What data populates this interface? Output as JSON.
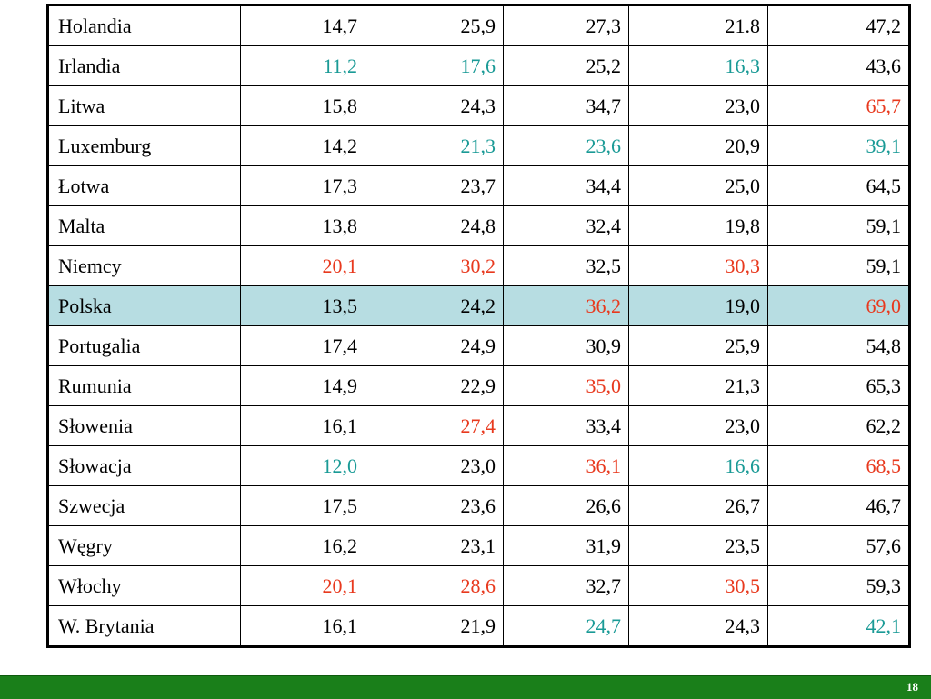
{
  "table": {
    "rows": [
      {
        "country": "Holandia",
        "values": [
          "14,7",
          "25,9",
          "27,3",
          "21.8",
          "47,2"
        ],
        "colors": [
          "",
          "",
          "",
          "",
          ""
        ]
      },
      {
        "country": "Irlandia",
        "values": [
          "11,2",
          "17,6",
          "25,2",
          "16,3",
          "43,6"
        ],
        "colors": [
          "teal",
          "teal",
          "",
          "teal",
          ""
        ]
      },
      {
        "country": "Litwa",
        "values": [
          "15,8",
          "24,3",
          "34,7",
          "23,0",
          "65,7"
        ],
        "colors": [
          "",
          "",
          "",
          "",
          "red"
        ]
      },
      {
        "country": "Luxemburg",
        "values": [
          "14,2",
          "21,3",
          "23,6",
          "20,9",
          "39,1"
        ],
        "colors": [
          "",
          "teal",
          "teal",
          "",
          "teal"
        ]
      },
      {
        "country": "Łotwa",
        "values": [
          "17,3",
          "23,7",
          "34,4",
          "25,0",
          "64,5"
        ],
        "colors": [
          "",
          "",
          "",
          "",
          ""
        ]
      },
      {
        "country": "Malta",
        "values": [
          "13,8",
          "24,8",
          "32,4",
          "19,8",
          "59,1"
        ],
        "colors": [
          "",
          "",
          "",
          "",
          ""
        ]
      },
      {
        "country": "Niemcy",
        "values": [
          "20,1",
          "30,2",
          "32,5",
          "30,3",
          "59,1"
        ],
        "colors": [
          "red",
          "red",
          "",
          "red",
          ""
        ]
      },
      {
        "country": "Polska",
        "values": [
          "13,5",
          "24,2",
          "36,2",
          "19,0",
          "69,0"
        ],
        "colors": [
          "",
          "",
          "red",
          "",
          "red"
        ],
        "highlight": true
      },
      {
        "country": "Portugalia",
        "values": [
          "17,4",
          "24,9",
          "30,9",
          "25,9",
          "54,8"
        ],
        "colors": [
          "",
          "",
          "",
          "",
          ""
        ]
      },
      {
        "country": "Rumunia",
        "values": [
          "14,9",
          "22,9",
          "35,0",
          "21,3",
          "65,3"
        ],
        "colors": [
          "",
          "",
          "red",
          "",
          ""
        ]
      },
      {
        "country": "Słowenia",
        "values": [
          "16,1",
          "27,4",
          "33,4",
          "23,0",
          "62,2"
        ],
        "colors": [
          "",
          "red",
          "",
          "",
          ""
        ]
      },
      {
        "country": "Słowacja",
        "values": [
          "12,0",
          "23,0",
          "36,1",
          "16,6",
          "68,5"
        ],
        "colors": [
          "teal",
          "",
          "red",
          "teal",
          "red"
        ]
      },
      {
        "country": "Szwecja",
        "values": [
          "17,5",
          "23,6",
          "26,6",
          "26,7",
          "46,7"
        ],
        "colors": [
          "",
          "",
          "",
          "",
          ""
        ]
      },
      {
        "country": "Węgry",
        "values": [
          "16,2",
          "23,1",
          "31,9",
          "23,5",
          "57,6"
        ],
        "colors": [
          "",
          "",
          "",
          "",
          ""
        ]
      },
      {
        "country": "Włochy",
        "values": [
          "20,1",
          "28,6",
          "32,7",
          "30,5",
          "59,3"
        ],
        "colors": [
          "red",
          "red",
          "",
          "red",
          ""
        ]
      },
      {
        "country": "W. Brytania",
        "values": [
          "16,1",
          "21,9",
          "24,7",
          "24,3",
          "42,1"
        ],
        "colors": [
          "",
          "",
          "teal",
          "",
          "teal"
        ]
      }
    ]
  },
  "footer": {
    "page_number": "18"
  },
  "colors": {
    "red": "#e8391e",
    "teal": "#1a9a96",
    "highlight_row": "#b7dde2",
    "footer_bar": "#1a7f1a"
  }
}
